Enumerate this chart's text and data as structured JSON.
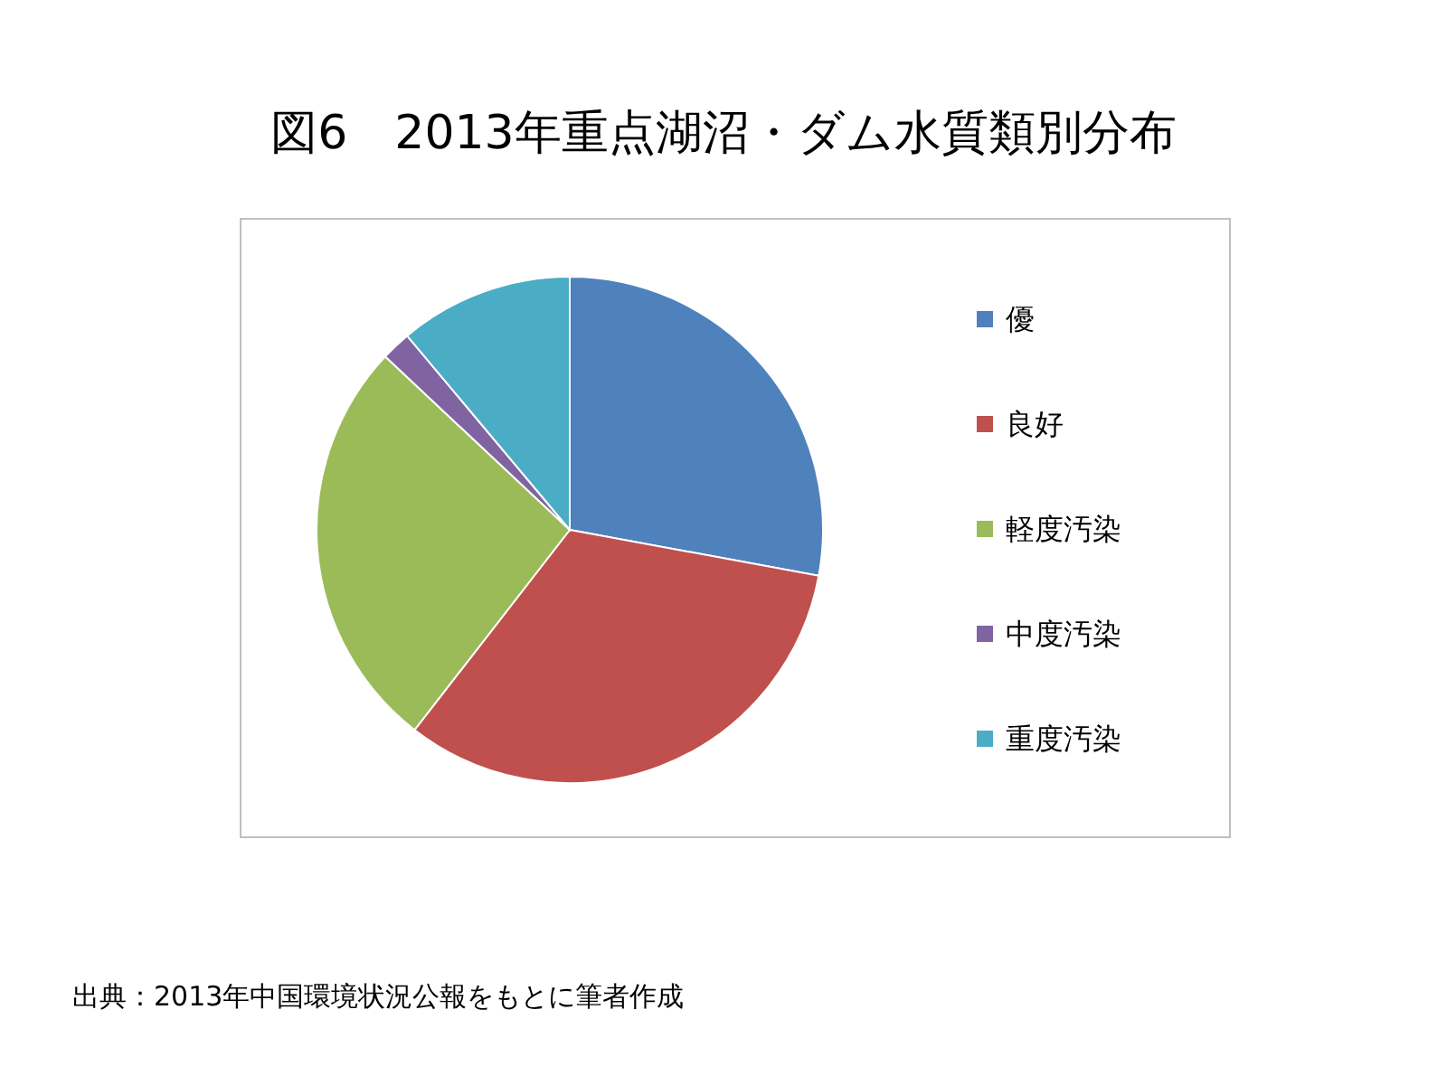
{
  "chart_data": {
    "type": "pie",
    "title": "図6　2013年重点湖沼・ダム水質類別分布",
    "categories": [
      "優",
      "良好",
      "軽度汚染",
      "中度汚染",
      "重度汚染"
    ],
    "values": [
      27.9,
      32.6,
      26.5,
      1.9,
      11.1
    ],
    "colors": [
      "#4f81bd",
      "#c0504d",
      "#9bbb59",
      "#8064a2",
      "#4bacc6"
    ],
    "legend": "right",
    "annotations": [
      "出典：2013年中国環境状況公報をもとに筆者作成"
    ]
  }
}
